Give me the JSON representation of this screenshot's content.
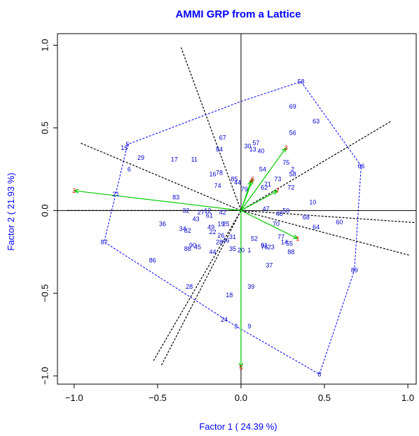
{
  "chart_data": {
    "type": "scatter",
    "title": "AMMI GRP from a Lattice",
    "xlabel": "Factor 1 ( 24.39 %)",
    "ylabel": "Factor 2 ( 21.93 %)",
    "xlim": [
      -1.1,
      1.05
    ],
    "ylim": [
      -1.05,
      1.07
    ],
    "xticks": [
      -1.0,
      -0.5,
      0.0,
      0.5,
      1.0
    ],
    "xtick_labels": [
      "−1.0",
      "−0.5",
      "0.0",
      "0.5",
      "1.0"
    ],
    "yticks": [
      -1.0,
      -0.5,
      0.0,
      0.5,
      1.0
    ],
    "ytick_labels": [
      "−1.0",
      "−0.5",
      "0.0",
      "0.5",
      "1.0"
    ],
    "colors": {
      "title": "#0000ff",
      "axis_label": "#0000ff",
      "genotype": "#0000cc",
      "environment": "#ff0000",
      "vector": "#00cc00",
      "hull": "#0000ff",
      "sector_line": "#000000"
    },
    "environments": [
      {
        "label": "1",
        "x": 0.34,
        "y": -0.17
      },
      {
        "label": "2",
        "x": -1.0,
        "y": 0.12
      },
      {
        "label": "3",
        "x": 0.27,
        "y": 0.38
      },
      {
        "label": "4",
        "x": 0.06,
        "y": 0.18
      },
      {
        "label": "5",
        "x": 0.0,
        "y": -0.95
      },
      {
        "label": "6",
        "x": 0.07,
        "y": 0.19
      },
      {
        "label": "7",
        "x": 0.22,
        "y": 0.12
      }
    ],
    "genotypes": [
      {
        "label": "58",
        "x": 0.36,
        "y": 0.78
      },
      {
        "label": "69",
        "x": 0.31,
        "y": 0.63
      },
      {
        "label": "63",
        "x": 0.45,
        "y": 0.54
      },
      {
        "label": "56",
        "x": 0.31,
        "y": 0.47
      },
      {
        "label": "67",
        "x": -0.11,
        "y": 0.44
      },
      {
        "label": "57",
        "x": 0.09,
        "y": 0.41
      },
      {
        "label": "30",
        "x": 0.04,
        "y": 0.39
      },
      {
        "label": "13",
        "x": 0.07,
        "y": 0.37
      },
      {
        "label": "40",
        "x": 0.12,
        "y": 0.36
      },
      {
        "label": "75",
        "x": 0.27,
        "y": 0.29
      },
      {
        "label": "84",
        "x": -0.13,
        "y": 0.37
      },
      {
        "label": "15",
        "x": -0.7,
        "y": 0.38
      },
      {
        "label": "5",
        "x": -0.68,
        "y": 0.4
      },
      {
        "label": "29",
        "x": -0.6,
        "y": 0.32
      },
      {
        "label": "17",
        "x": -0.4,
        "y": 0.31
      },
      {
        "label": "11",
        "x": -0.28,
        "y": 0.31
      },
      {
        "label": "6",
        "x": -0.67,
        "y": 0.25
      },
      {
        "label": "66",
        "x": 0.72,
        "y": 0.27
      },
      {
        "label": "2",
        "x": 0.31,
        "y": 0.25
      },
      {
        "label": "58",
        "x": 0.31,
        "y": 0.22
      },
      {
        "label": "54",
        "x": 0.13,
        "y": 0.25
      },
      {
        "label": "16",
        "x": -0.17,
        "y": 0.22
      },
      {
        "label": "78",
        "x": -0.13,
        "y": 0.23
      },
      {
        "label": "73",
        "x": 0.22,
        "y": 0.19
      },
      {
        "label": "71",
        "x": 0.16,
        "y": 0.16
      },
      {
        "label": "85",
        "x": -0.04,
        "y": 0.19
      },
      {
        "label": "44",
        "x": -0.02,
        "y": 0.17
      },
      {
        "label": "72",
        "x": 0.3,
        "y": 0.14
      },
      {
        "label": "62",
        "x": 0.14,
        "y": 0.14
      },
      {
        "label": "74",
        "x": -0.14,
        "y": 0.15
      },
      {
        "label": "79",
        "x": 0.02,
        "y": 0.13
      },
      {
        "label": "21",
        "x": -0.75,
        "y": 0.1
      },
      {
        "label": "83",
        "x": -0.39,
        "y": 0.08
      },
      {
        "label": "10",
        "x": 0.43,
        "y": 0.05
      },
      {
        "label": "47",
        "x": 0.15,
        "y": 0.01
      },
      {
        "label": "50",
        "x": 0.27,
        "y": 0.0
      },
      {
        "label": "32",
        "x": -0.33,
        "y": 0.0
      },
      {
        "label": "27",
        "x": -0.24,
        "y": -0.01
      },
      {
        "label": "12",
        "x": -0.2,
        "y": 0.0
      },
      {
        "label": "61",
        "x": -0.19,
        "y": -0.03
      },
      {
        "label": "42",
        "x": -0.11,
        "y": -0.01
      },
      {
        "label": "48",
        "x": 0.23,
        "y": -0.02
      },
      {
        "label": "68",
        "x": 0.39,
        "y": -0.04
      },
      {
        "label": "60",
        "x": 0.59,
        "y": -0.07
      },
      {
        "label": "43",
        "x": -0.27,
        "y": -0.05
      },
      {
        "label": "36",
        "x": -0.47,
        "y": -0.08
      },
      {
        "label": "19",
        "x": -0.12,
        "y": -0.08
      },
      {
        "label": "25",
        "x": -0.09,
        "y": -0.08
      },
      {
        "label": "49",
        "x": -0.18,
        "y": -0.1
      },
      {
        "label": "70",
        "x": 0.21,
        "y": -0.08
      },
      {
        "label": "64",
        "x": 0.45,
        "y": -0.1
      },
      {
        "label": "34",
        "x": -0.35,
        "y": -0.11
      },
      {
        "label": "82",
        "x": -0.32,
        "y": -0.12
      },
      {
        "label": "22",
        "x": -0.17,
        "y": -0.13
      },
      {
        "label": "26",
        "x": -0.12,
        "y": -0.15
      },
      {
        "label": "31",
        "x": -0.05,
        "y": -0.16
      },
      {
        "label": "46",
        "x": -0.09,
        "y": -0.18
      },
      {
        "label": "28",
        "x": -0.13,
        "y": -0.19
      },
      {
        "label": "52",
        "x": 0.08,
        "y": -0.17
      },
      {
        "label": "77",
        "x": 0.24,
        "y": -0.16
      },
      {
        "label": "14",
        "x": 0.26,
        "y": -0.19
      },
      {
        "label": "55",
        "x": 0.29,
        "y": -0.2
      },
      {
        "label": "81",
        "x": 0.14,
        "y": -0.21
      },
      {
        "label": "23",
        "x": 0.18,
        "y": -0.22
      },
      {
        "label": "76",
        "x": 0.14,
        "y": -0.22
      },
      {
        "label": "90",
        "x": -0.29,
        "y": -0.21
      },
      {
        "label": "45",
        "x": -0.26,
        "y": -0.22
      },
      {
        "label": "87",
        "x": -0.82,
        "y": -0.19
      },
      {
        "label": "88",
        "x": -0.32,
        "y": -0.23
      },
      {
        "label": "44",
        "x": -0.17,
        "y": -0.25
      },
      {
        "label": "35",
        "x": -0.05,
        "y": -0.23
      },
      {
        "label": "20",
        "x": 0.0,
        "y": -0.24
      },
      {
        "label": "1",
        "x": 0.05,
        "y": -0.24
      },
      {
        "label": "88",
        "x": 0.3,
        "y": -0.25
      },
      {
        "label": "86",
        "x": -0.53,
        "y": -0.3
      },
      {
        "label": "37",
        "x": 0.17,
        "y": -0.33
      },
      {
        "label": "89",
        "x": 0.68,
        "y": -0.36
      },
      {
        "label": "39",
        "x": 0.06,
        "y": -0.46
      },
      {
        "label": "28",
        "x": -0.31,
        "y": -0.46
      },
      {
        "label": "18",
        "x": -0.07,
        "y": -0.51
      },
      {
        "label": "24",
        "x": -0.1,
        "y": -0.66
      },
      {
        "label": "3",
        "x": -0.03,
        "y": -0.7
      },
      {
        "label": "9",
        "x": 0.05,
        "y": -0.7
      },
      {
        "label": "8",
        "x": 0.47,
        "y": -0.99
      }
    ],
    "hull": [
      [
        0.36,
        0.78
      ],
      [
        0.72,
        0.27
      ],
      [
        0.68,
        -0.36
      ],
      [
        0.47,
        -0.99
      ],
      [
        -0.03,
        -0.7
      ],
      [
        -0.82,
        -0.19
      ],
      [
        -0.68,
        0.4
      ],
      [
        0.0,
        0.66
      ]
    ],
    "sector_rays": [
      {
        "angle_deg": 157
      },
      {
        "angle_deg": 110
      },
      {
        "angle_deg": -180
      },
      {
        "angle_deg": -4
      },
      {
        "angle_deg": -15
      },
      {
        "angle_deg": 31
      },
      {
        "angle_deg": -117
      },
      {
        "angle_deg": -120
      }
    ]
  }
}
